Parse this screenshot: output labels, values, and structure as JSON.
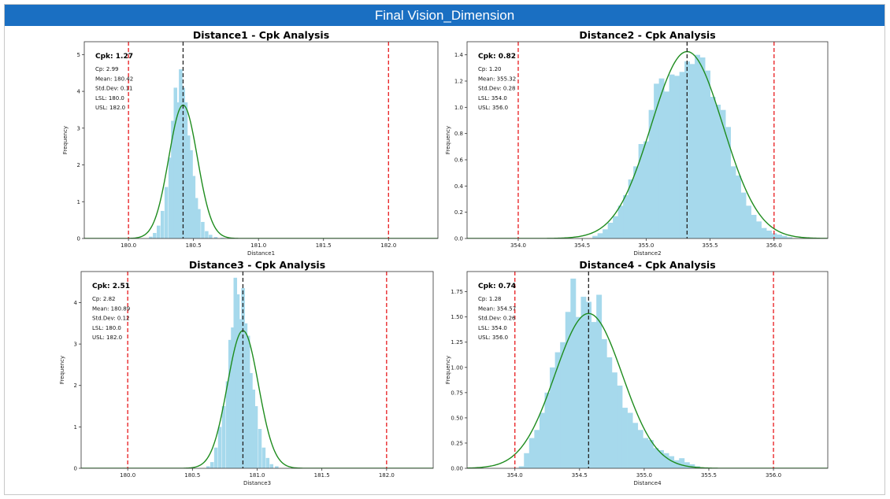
{
  "header": {
    "title": "Final Vision_Dimension"
  },
  "colors": {
    "bars": "#a6d9ec",
    "curve": "#1e8c1e",
    "spec": "#e8191c",
    "mean": "#222222",
    "header_bg": "#1a6fc2"
  },
  "chart_data": [
    {
      "type": "bar",
      "title": "Distance1 - Cpk Analysis",
      "xlabel": "Distance1",
      "ylabel": "Frequency",
      "xlim": [
        179.66,
        182.38
      ],
      "ylim": [
        0,
        5.35
      ],
      "xticks": [
        "180.0",
        "180.5",
        "181.0",
        "181.5",
        "182.0"
      ],
      "yticks": [
        "0",
        "1",
        "2",
        "3",
        "4",
        "5"
      ],
      "stats": {
        "cpk": "Cpk: 1.27",
        "cp": "Cp: 2.99",
        "mean": "Mean: 180.42",
        "std": "Std.Dev: 0.11",
        "lsl": "LSL: 180.0",
        "usl": "USL: 182.0"
      },
      "lsl": 180.0,
      "usl": 182.0,
      "mean_value": 180.42,
      "std_value": 0.11,
      "bins": [
        [
          180.17,
          0.05
        ],
        [
          180.2,
          0.15
        ],
        [
          180.23,
          0.35
        ],
        [
          180.26,
          0.75
        ],
        [
          180.29,
          1.4
        ],
        [
          180.32,
          2.2
        ],
        [
          180.34,
          3.2
        ],
        [
          180.36,
          4.1
        ],
        [
          180.38,
          3.7
        ],
        [
          180.4,
          4.6
        ],
        [
          180.42,
          4.1
        ],
        [
          180.44,
          3.7
        ],
        [
          180.46,
          2.8
        ],
        [
          180.48,
          2.4
        ],
        [
          180.5,
          1.7
        ],
        [
          180.52,
          1.1
        ],
        [
          180.54,
          0.8
        ],
        [
          180.57,
          0.45
        ],
        [
          180.6,
          0.2
        ],
        [
          180.63,
          0.1
        ],
        [
          180.67,
          0.04
        ],
        [
          180.72,
          0.02
        ]
      ],
      "bin_width": 0.025
    },
    {
      "type": "bar",
      "title": "Distance2 - Cpk Analysis",
      "xlabel": "Distance2",
      "ylabel": "Frequency",
      "xlim": [
        353.6,
        356.42
      ],
      "ylim": [
        0,
        1.5
      ],
      "xticks": [
        "354.0",
        "354.5",
        "355.0",
        "355.5",
        "356.0"
      ],
      "yticks": [
        "0.0",
        "0.2",
        "0.4",
        "0.6",
        "0.8",
        "1.0",
        "1.2",
        "1.4"
      ],
      "stats": {
        "cpk": "Cpk: 0.82",
        "cp": "Cp: 1.20",
        "mean": "Mean: 355.32",
        "std": "Std.Dev: 0.28",
        "lsl": "LSL: 354.0",
        "usl": "USL: 356.0"
      },
      "lsl": 354.0,
      "usl": 356.0,
      "mean_value": 355.32,
      "std_value": 0.28,
      "bins": [
        [
          354.6,
          0.02
        ],
        [
          354.64,
          0.04
        ],
        [
          354.68,
          0.07
        ],
        [
          354.72,
          0.12
        ],
        [
          354.76,
          0.17
        ],
        [
          354.8,
          0.25
        ],
        [
          354.84,
          0.33
        ],
        [
          354.88,
          0.45
        ],
        [
          354.92,
          0.55
        ],
        [
          354.96,
          0.72
        ],
        [
          355.0,
          0.74
        ],
        [
          355.04,
          0.98
        ],
        [
          355.08,
          1.18
        ],
        [
          355.12,
          1.22
        ],
        [
          355.16,
          1.12
        ],
        [
          355.2,
          1.25
        ],
        [
          355.24,
          1.24
        ],
        [
          355.28,
          1.27
        ],
        [
          355.32,
          1.35
        ],
        [
          355.36,
          1.33
        ],
        [
          355.4,
          1.4
        ],
        [
          355.44,
          1.38
        ],
        [
          355.48,
          1.28
        ],
        [
          355.52,
          1.08
        ],
        [
          355.56,
          1.02
        ],
        [
          355.6,
          0.98
        ],
        [
          355.64,
          0.85
        ],
        [
          355.68,
          0.55
        ],
        [
          355.72,
          0.48
        ],
        [
          355.76,
          0.35
        ],
        [
          355.8,
          0.25
        ],
        [
          355.84,
          0.18
        ],
        [
          355.88,
          0.13
        ],
        [
          355.92,
          0.08
        ],
        [
          355.96,
          0.06
        ],
        [
          356.0,
          0.04
        ],
        [
          356.04,
          0.03
        ],
        [
          356.08,
          0.02
        ],
        [
          356.12,
          0.01
        ]
      ],
      "bin_width": 0.04
    },
    {
      "type": "bar",
      "title": "Distance3 - Cpk Analysis",
      "xlabel": "Distance3",
      "ylabel": "Frequency",
      "xlim": [
        179.64,
        182.36
      ],
      "ylim": [
        0,
        4.75
      ],
      "xticks": [
        "180.0",
        "180.5",
        "181.0",
        "181.5",
        "182.0"
      ],
      "yticks": [
        "0",
        "1",
        "2",
        "3",
        "4"
      ],
      "stats": {
        "cpk": "Cpk: 2.51",
        "cp": "Cp: 2.82",
        "mean": "Mean: 180.89",
        "std": "Std.Dev: 0.12",
        "lsl": "LSL: 180.0",
        "usl": "USL: 182.0"
      },
      "lsl": 180.0,
      "usl": 182.0,
      "mean_value": 180.89,
      "std_value": 0.12,
      "bins": [
        [
          180.62,
          0.05
        ],
        [
          180.65,
          0.15
        ],
        [
          180.68,
          0.5
        ],
        [
          180.71,
          1.0
        ],
        [
          180.74,
          1.5
        ],
        [
          180.77,
          2.1
        ],
        [
          180.79,
          3.1
        ],
        [
          180.81,
          3.4
        ],
        [
          180.83,
          4.6
        ],
        [
          180.85,
          4.2
        ],
        [
          180.87,
          3.6
        ],
        [
          180.89,
          4.35
        ],
        [
          180.91,
          3.5
        ],
        [
          180.93,
          3.2
        ],
        [
          180.95,
          2.3
        ],
        [
          180.97,
          1.9
        ],
        [
          180.99,
          1.5
        ],
        [
          181.02,
          0.95
        ],
        [
          181.05,
          0.5
        ],
        [
          181.08,
          0.25
        ],
        [
          181.11,
          0.1
        ],
        [
          181.15,
          0.05
        ]
      ],
      "bin_width": 0.025
    },
    {
      "type": "bar",
      "title": "Distance4 - Cpk Analysis",
      "xlabel": "Distance4",
      "ylabel": "Frequency",
      "xlim": [
        353.63,
        356.42
      ],
      "ylim": [
        0,
        1.95
      ],
      "xticks": [
        "354.0",
        "354.5",
        "355.0",
        "355.5",
        "356.0"
      ],
      "yticks": [
        "0.00",
        "0.25",
        "0.50",
        "0.75",
        "1.00",
        "1.25",
        "1.50",
        "1.75"
      ],
      "stats": {
        "cpk": "Cpk: 0.74",
        "cp": "Cp: 1.28",
        "mean": "Mean: 354.57",
        "std": "Std.Dev: 0.26",
        "lsl": "LSL: 354.0",
        "usl": "USL: 356.0"
      },
      "lsl": 354.0,
      "usl": 356.0,
      "mean_value": 354.57,
      "std_value": 0.26,
      "bins": [
        [
          354.05,
          0.02
        ],
        [
          354.09,
          0.15
        ],
        [
          354.13,
          0.3
        ],
        [
          354.17,
          0.38
        ],
        [
          354.21,
          0.55
        ],
        [
          354.25,
          0.75
        ],
        [
          354.29,
          1.0
        ],
        [
          354.33,
          1.15
        ],
        [
          354.37,
          1.25
        ],
        [
          354.41,
          1.55
        ],
        [
          354.45,
          1.88
        ],
        [
          354.49,
          1.5
        ],
        [
          354.53,
          1.7
        ],
        [
          354.57,
          1.65
        ],
        [
          354.61,
          1.45
        ],
        [
          354.65,
          1.72
        ],
        [
          354.69,
          1.28
        ],
        [
          354.73,
          1.1
        ],
        [
          354.77,
          0.95
        ],
        [
          354.81,
          0.82
        ],
        [
          354.85,
          0.6
        ],
        [
          354.89,
          0.55
        ],
        [
          354.93,
          0.45
        ],
        [
          354.97,
          0.38
        ],
        [
          355.01,
          0.3
        ],
        [
          355.05,
          0.28
        ],
        [
          355.09,
          0.2
        ],
        [
          355.13,
          0.18
        ],
        [
          355.17,
          0.15
        ],
        [
          355.21,
          0.12
        ],
        [
          355.25,
          0.08
        ],
        [
          355.29,
          0.1
        ],
        [
          355.33,
          0.06
        ],
        [
          355.37,
          0.04
        ],
        [
          355.41,
          0.02
        ]
      ],
      "bin_width": 0.04
    }
  ]
}
